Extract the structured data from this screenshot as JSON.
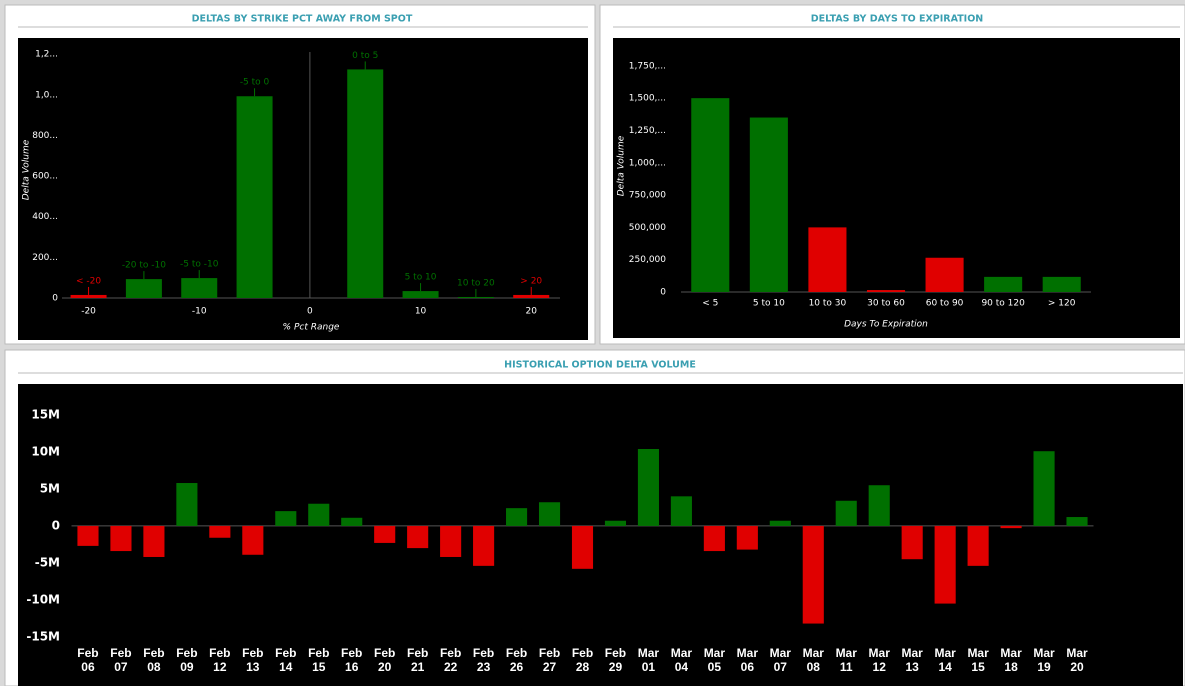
{
  "chart_data": [
    {
      "type": "bar",
      "title": "DELTAS BY STRIKE PCT AWAY FROM SPOT",
      "x_label": "% Pct Range",
      "y_label": "Delta Volume",
      "x": [
        -20,
        -15,
        -10,
        -5,
        5,
        10,
        15,
        20
      ],
      "bar_labels": [
        "< -20",
        "-20 to -10",
        "-5 to -10",
        "-5 to 0",
        "0 to 5",
        "5 to 10",
        "10 to 20",
        "> 20"
      ],
      "values": [
        15000,
        93000,
        98000,
        993000,
        1125000,
        34000,
        5000,
        15000
      ],
      "colors": [
        "#e00000",
        "#007000",
        "#007000",
        "#007000",
        "#007000",
        "#007000",
        "#007000",
        "#e00000"
      ],
      "xlim": [
        -22.4,
        22.6
      ],
      "xticks": [
        -20,
        -10,
        0,
        10,
        20
      ],
      "ylim": [
        0,
        1260000
      ],
      "yticks": [
        0,
        {
          "value": 200000,
          "label": "200..."
        },
        {
          "value": 400000,
          "label": "400..."
        },
        {
          "value": 600000,
          "label": "600..."
        },
        {
          "value": 800000,
          "label": "800..."
        },
        {
          "value": 1000000,
          "label": "1,0..."
        },
        {
          "value": 1200000,
          "label": "1,2..."
        }
      ]
    },
    {
      "type": "bar",
      "title": "DELTAS BY DAYS TO EXPIRATION",
      "x_label": "Days To Expiration",
      "y_label": "Delta Volume",
      "categories": [
        "< 5",
        "5 to 10",
        "10 to 30",
        "30 to 60",
        "60 to 90",
        "90 to 120",
        "> 120"
      ],
      "values": [
        1500000,
        1350000,
        500000,
        15000,
        265000,
        117000,
        117000
      ],
      "colors": [
        "#007000",
        "#007000",
        "#e00000",
        "#e00000",
        "#e00000",
        "#007000",
        "#007000"
      ],
      "ylim": [
        0,
        1950000
      ],
      "yticks": [
        0,
        {
          "value": 250000,
          "label": "250,000"
        },
        {
          "value": 500000,
          "label": "500,000"
        },
        {
          "value": 750000,
          "label": "750,000"
        },
        {
          "value": 1000000,
          "label": "1,000,..."
        },
        {
          "value": 1250000,
          "label": "1,250,..."
        },
        {
          "value": 1500000,
          "label": "1,500,..."
        },
        {
          "value": 1750000,
          "label": "1,750,..."
        }
      ]
    },
    {
      "type": "bar",
      "title": "HISTORICAL OPTION DELTA VOLUME",
      "categories": [
        "Feb 06",
        "Feb 07",
        "Feb 08",
        "Feb 09",
        "Feb 12",
        "Feb 13",
        "Feb 14",
        "Feb 15",
        "Feb 16",
        "Feb 20",
        "Feb 21",
        "Feb 22",
        "Feb 23",
        "Feb 26",
        "Feb 27",
        "Feb 28",
        "Feb 29",
        "Mar 01",
        "Mar 04",
        "Mar 05",
        "Mar 06",
        "Mar 07",
        "Mar 08",
        "Mar 11",
        "Mar 12",
        "Mar 13",
        "Mar 14",
        "Mar 15",
        "Mar 18",
        "Mar 19",
        "Mar 20"
      ],
      "values": [
        -2700000,
        -3400000,
        -4200000,
        5800000,
        -1600000,
        -3900000,
        2000000,
        3000000,
        1100000,
        -2300000,
        -3000000,
        -4200000,
        -5400000,
        2400000,
        3200000,
        -5800000,
        700000,
        10400000,
        4000000,
        -3400000,
        -3200000,
        700000,
        -13200000,
        3400000,
        5500000,
        -4500000,
        -10500000,
        -5400000,
        -300000,
        10100000,
        1200000
      ],
      "positive_color": "#007000",
      "negative_color": "#e00000",
      "ylim": [
        -16100000,
        17700000
      ],
      "yticks": [
        {
          "value": -15000000,
          "label": "-15M"
        },
        {
          "value": -10000000,
          "label": "-10M"
        },
        {
          "value": -5000000,
          "label": "-5M"
        },
        0,
        {
          "value": 5000000,
          "label": "5M"
        },
        {
          "value": 10000000,
          "label": "10M"
        },
        {
          "value": 15000000,
          "label": "15M"
        }
      ]
    }
  ]
}
